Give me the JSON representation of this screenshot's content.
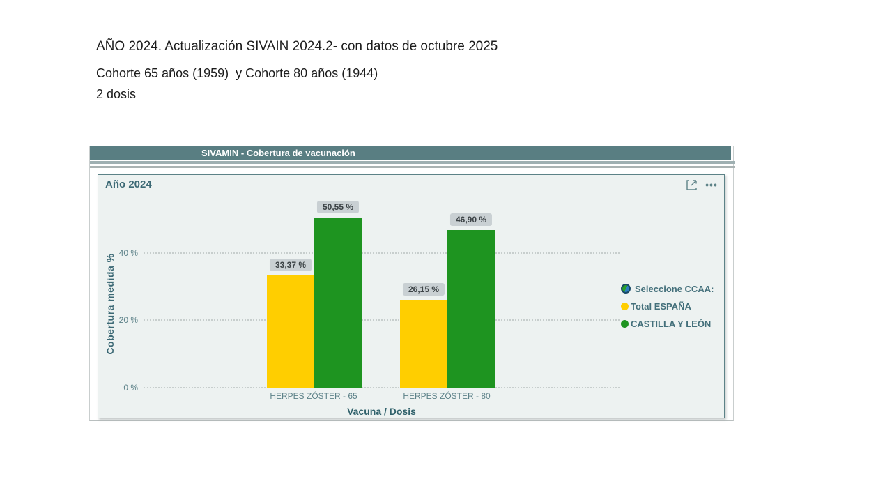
{
  "heading": {
    "line1": "AÑO 2024. Actualización SIVAIN 2024.2- con datos de octubre 2025",
    "line2": "Cohorte 65 años (1959)  y Cohorte 80 años (1944)",
    "line3": "2 dosis"
  },
  "widget": {
    "header_title": "SIVAMIN - Cobertura de vacunación",
    "header_bg": "#597e82",
    "card_title": "Año 2024",
    "icons": {
      "focus_mode": "focus-mode-icon",
      "more_options": "more-options-icon",
      "more_glyph": "•••",
      "legend_globe": "globe-icon"
    }
  },
  "chart_data": {
    "type": "bar",
    "title": "Año 2024",
    "categories": [
      "HERPES ZÓSTER - 65",
      "HERPES ZÓSTER - 80"
    ],
    "series": [
      {
        "name": "Total ESPAÑA",
        "color": "#FFCE00",
        "values": [
          33.37,
          26.15
        ],
        "labels": [
          "33,37 %",
          "26,15 %"
        ]
      },
      {
        "name": "CASTILLA Y LEÓN",
        "color": "#1E9420",
        "values": [
          50.55,
          46.9
        ],
        "labels": [
          "50,55 %",
          "46,90 %"
        ]
      }
    ],
    "xlabel": "Vacuna / Dosis",
    "ylabel": "Cobertura medida %",
    "yticks": [
      {
        "label": "0 %",
        "pct": 0
      },
      {
        "label": "20 %",
        "pct": 20
      },
      {
        "label": "40 %",
        "pct": 40
      }
    ],
    "ylim": [
      0,
      57
    ],
    "grid": "dotted horizontal",
    "legend_position": "right",
    "legend_title": "Seleccione CCAA:"
  }
}
